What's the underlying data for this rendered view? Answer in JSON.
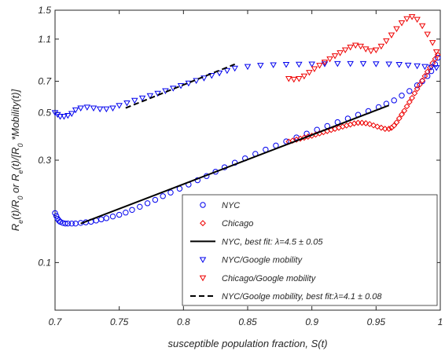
{
  "chart_data": {
    "type": "scatter",
    "xlabel": "susceptible population fraction, S(t)",
    "ylabel_parts": [
      "R",
      "e",
      "(t)/R",
      "0",
      " or R",
      "e",
      "(t)/[R",
      "0",
      " *Mobility(t)]"
    ],
    "xlim": [
      0.7,
      1.0
    ],
    "ylim": [
      0.06,
      1.5
    ],
    "yscale": "log",
    "grid": false,
    "legend_position": "bottom-right",
    "x_ticks": [
      {
        "v": 0.7,
        "label": "0.7"
      },
      {
        "v": 0.75,
        "label": "0.75"
      },
      {
        "v": 0.8,
        "label": "0.8"
      },
      {
        "v": 0.85,
        "label": "0.85"
      },
      {
        "v": 0.9,
        "label": "0.9"
      },
      {
        "v": 0.95,
        "label": "0.95"
      },
      {
        "v": 1.0,
        "label": "1"
      }
    ],
    "y_ticks": [
      {
        "v": 0.1,
        "label": "0.1"
      },
      {
        "v": 0.3,
        "label": "0.3"
      },
      {
        "v": 0.5,
        "label": "0.5"
      },
      {
        "v": 0.7,
        "label": "0.7"
      },
      {
        "v": 1.1,
        "label": "1.1"
      },
      {
        "v": 1.5,
        "label": "1.5"
      }
    ],
    "colors": {
      "blue": "#0000ee",
      "red": "#ee0000",
      "black": "#000000",
      "axis": "#262626"
    },
    "series": [
      {
        "name": "NYC",
        "marker": "circle",
        "color": "#0000ee",
        "x": [
          0.7,
          0.701,
          0.702,
          0.703,
          0.704,
          0.706,
          0.708,
          0.71,
          0.713,
          0.716,
          0.72,
          0.724,
          0.728,
          0.732,
          0.736,
          0.74,
          0.745,
          0.75,
          0.755,
          0.76,
          0.766,
          0.772,
          0.778,
          0.784,
          0.79,
          0.797,
          0.804,
          0.811,
          0.818,
          0.825,
          0.832,
          0.84,
          0.848,
          0.856,
          0.864,
          0.872,
          0.88,
          0.888,
          0.896,
          0.904,
          0.912,
          0.92,
          0.928,
          0.936,
          0.944,
          0.952,
          0.958,
          0.964,
          0.97,
          0.976,
          0.982,
          0.986,
          0.99,
          0.993,
          0.996,
          0.998
        ],
        "y": [
          0.17,
          0.165,
          0.16,
          0.157,
          0.155,
          0.153,
          0.152,
          0.152,
          0.152,
          0.152,
          0.153,
          0.154,
          0.155,
          0.157,
          0.159,
          0.161,
          0.164,
          0.167,
          0.171,
          0.176,
          0.182,
          0.189,
          0.196,
          0.204,
          0.212,
          0.221,
          0.231,
          0.242,
          0.253,
          0.265,
          0.278,
          0.292,
          0.306,
          0.321,
          0.336,
          0.351,
          0.367,
          0.383,
          0.399,
          0.416,
          0.433,
          0.451,
          0.469,
          0.488,
          0.508,
          0.53,
          0.55,
          0.57,
          0.6,
          0.63,
          0.67,
          0.7,
          0.74,
          0.78,
          0.84,
          0.9
        ]
      },
      {
        "name": "Chicago",
        "marker": "diamond",
        "color": "#ee0000",
        "x": [
          0.882,
          0.885,
          0.888,
          0.891,
          0.894,
          0.897,
          0.9,
          0.903,
          0.906,
          0.909,
          0.912,
          0.915,
          0.918,
          0.921,
          0.924,
          0.927,
          0.93,
          0.933,
          0.936,
          0.939,
          0.942,
          0.945,
          0.948,
          0.951,
          0.954,
          0.957,
          0.96,
          0.962,
          0.964,
          0.966,
          0.968,
          0.97,
          0.972,
          0.974,
          0.976,
          0.978,
          0.98,
          0.982,
          0.984,
          0.986,
          0.988,
          0.99,
          0.992,
          0.994,
          0.996,
          0.998
        ],
        "y": [
          0.366,
          0.37,
          0.374,
          0.378,
          0.382,
          0.386,
          0.39,
          0.395,
          0.4,
          0.405,
          0.41,
          0.415,
          0.42,
          0.425,
          0.43,
          0.435,
          0.44,
          0.445,
          0.448,
          0.448,
          0.446,
          0.442,
          0.436,
          0.43,
          0.425,
          0.42,
          0.42,
          0.425,
          0.435,
          0.45,
          0.47,
          0.49,
          0.51,
          0.535,
          0.56,
          0.585,
          0.615,
          0.645,
          0.675,
          0.705,
          0.74,
          0.775,
          0.81,
          0.85,
          0.89,
          0.93
        ]
      },
      {
        "name": "NYC, best fit: λ=4.5 ± 0.05",
        "marker": "line-solid",
        "color": "#000000",
        "x": [
          0.72,
          0.96
        ],
        "y": [
          0.152,
          0.54
        ]
      },
      {
        "name": "NYC/Google mobility",
        "marker": "triangle-down",
        "color": "#0000ee",
        "x": [
          0.7,
          0.702,
          0.704,
          0.707,
          0.71,
          0.713,
          0.716,
          0.72,
          0.725,
          0.73,
          0.735,
          0.74,
          0.745,
          0.75,
          0.756,
          0.762,
          0.768,
          0.774,
          0.78,
          0.786,
          0.792,
          0.798,
          0.804,
          0.81,
          0.816,
          0.822,
          0.828,
          0.834,
          0.84,
          0.85,
          0.86,
          0.87,
          0.88,
          0.89,
          0.9,
          0.91,
          0.92,
          0.93,
          0.94,
          0.95,
          0.96,
          0.968,
          0.975,
          0.982,
          0.988,
          0.993,
          0.997
        ],
        "y": [
          0.5,
          0.49,
          0.48,
          0.48,
          0.485,
          0.495,
          0.515,
          0.525,
          0.53,
          0.525,
          0.52,
          0.52,
          0.525,
          0.54,
          0.555,
          0.57,
          0.585,
          0.6,
          0.615,
          0.632,
          0.65,
          0.668,
          0.686,
          0.705,
          0.725,
          0.745,
          0.765,
          0.785,
          0.805,
          0.82,
          0.83,
          0.835,
          0.838,
          0.84,
          0.842,
          0.844,
          0.846,
          0.846,
          0.846,
          0.844,
          0.842,
          0.838,
          0.832,
          0.826,
          0.82,
          0.815,
          0.81
        ]
      },
      {
        "name": "Chicago/Google mobility",
        "marker": "triangle-down",
        "color": "#ee0000",
        "x": [
          0.882,
          0.886,
          0.89,
          0.894,
          0.898,
          0.902,
          0.906,
          0.91,
          0.914,
          0.918,
          0.922,
          0.926,
          0.93,
          0.934,
          0.938,
          0.942,
          0.946,
          0.95,
          0.954,
          0.958,
          0.962,
          0.966,
          0.97,
          0.974,
          0.978,
          0.982,
          0.986,
          0.99,
          0.994,
          0.997
        ],
        "y": [
          0.72,
          0.715,
          0.72,
          0.74,
          0.77,
          0.8,
          0.83,
          0.86,
          0.89,
          0.92,
          0.95,
          0.98,
          1.01,
          1.03,
          1.02,
          0.99,
          0.97,
          0.98,
          1.02,
          1.08,
          1.15,
          1.23,
          1.31,
          1.37,
          1.4,
          1.36,
          1.27,
          1.16,
          1.06,
          0.96
        ]
      },
      {
        "name": "NYC/Goolge mobility, best fit:λ=4.1 ± 0.08",
        "marker": "line-dashed",
        "color": "#000000",
        "x": [
          0.755,
          0.84
        ],
        "y": [
          0.525,
          0.84
        ]
      }
    ]
  }
}
